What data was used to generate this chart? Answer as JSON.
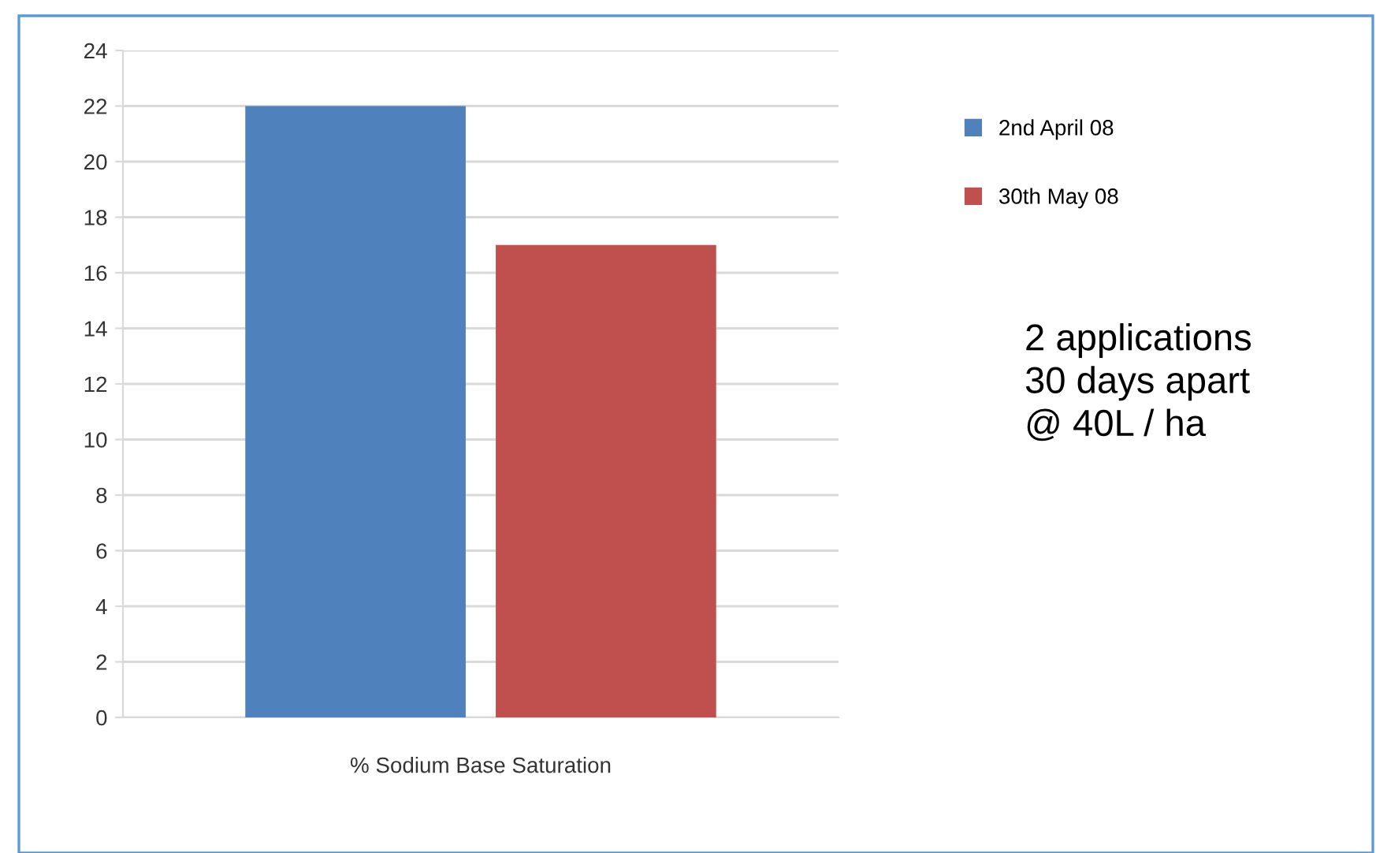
{
  "chart_data": {
    "type": "bar",
    "categories": [
      "% Sodium Base Saturation"
    ],
    "series": [
      {
        "name": "2nd April 08",
        "color": "#4f81bd",
        "values": [
          22
        ]
      },
      {
        "name": "30th May 08",
        "color": "#c0504d",
        "values": [
          17
        ]
      }
    ],
    "ylim": [
      0,
      24
    ],
    "yticks": [
      0,
      2,
      4,
      6,
      8,
      10,
      12,
      14,
      16,
      18,
      20,
      22,
      24
    ],
    "grid": "y",
    "legend": "right",
    "annotations": [
      "2 applications\n30 days apart\n@ 40L / ha"
    ]
  }
}
